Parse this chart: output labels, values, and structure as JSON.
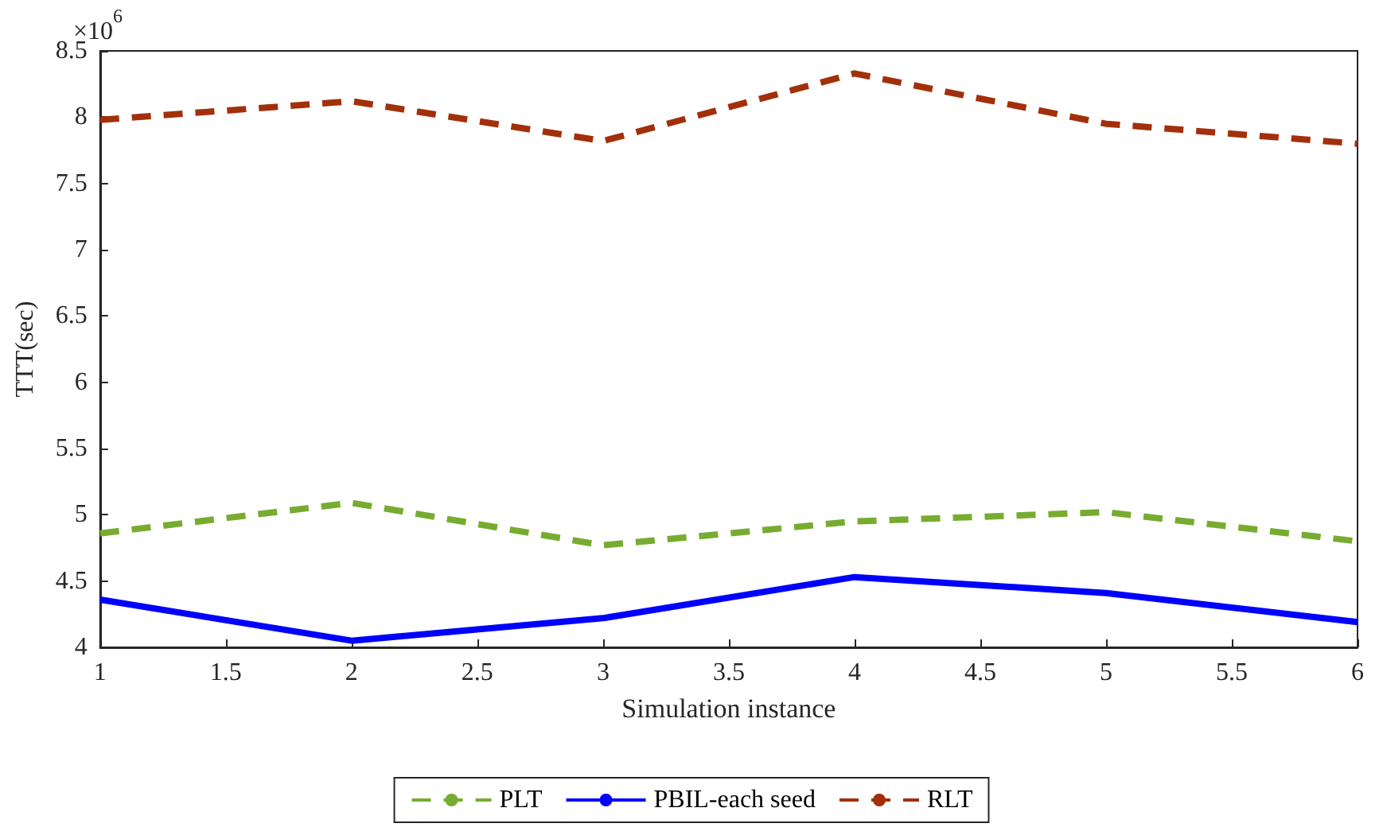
{
  "chart_data": {
    "type": "line",
    "xlabel": "Simulation instance",
    "ylabel": "TTT(sec)",
    "annotations": [
      "×10$^{6}$"
    ],
    "x": [
      1,
      2,
      3,
      4,
      5,
      6
    ],
    "series": [
      {
        "name": "PLT",
        "color": "#77ac30",
        "line_style": "dashed",
        "values": [
          4.86,
          5.09,
          4.77,
          4.95,
          5.02,
          4.8
        ]
      },
      {
        "name": "PBIL-each seed",
        "color": "#0000ff",
        "line_style": "solid",
        "values": [
          4.36,
          4.05,
          4.22,
          4.53,
          4.41,
          4.19
        ]
      },
      {
        "name": "RLT",
        "color": "#a2300a",
        "line_style": "dashed",
        "values": [
          7.98,
          8.12,
          7.82,
          8.33,
          7.95,
          7.8
        ]
      }
    ],
    "xlim": [
      1,
      6
    ],
    "xticks": [
      1,
      1.5,
      2,
      2.5,
      3,
      3.5,
      4,
      4.5,
      5,
      5.5,
      6
    ],
    "ylim": [
      4,
      8.5
    ],
    "yticks": [
      4,
      4.5,
      5,
      5.5,
      6,
      6.5,
      7,
      7.5,
      8,
      8.5
    ],
    "grid": false,
    "legend": "bottom",
    "marker": "none"
  }
}
